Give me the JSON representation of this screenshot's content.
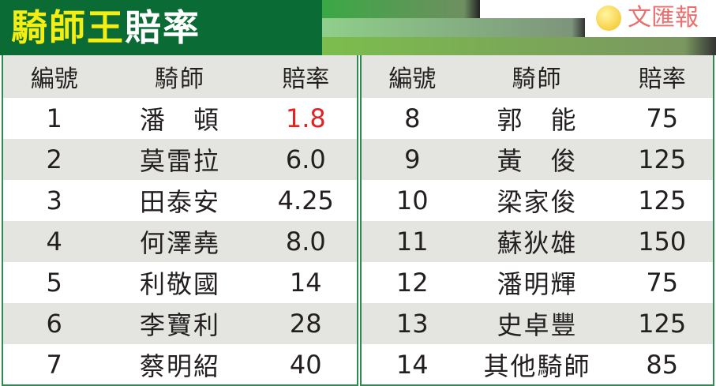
{
  "title": {
    "yellow": "騎師王",
    "white": "賠率"
  },
  "headers": [
    "編號",
    "騎師",
    "賠率"
  ],
  "left": [
    {
      "no": "1",
      "jockey": "潘　頓",
      "odds": "1.8",
      "highlight": true
    },
    {
      "no": "2",
      "jockey": "莫雷拉",
      "odds": "6.0"
    },
    {
      "no": "3",
      "jockey": "田泰安",
      "odds": "4.25"
    },
    {
      "no": "4",
      "jockey": "何澤堯",
      "odds": "8.0"
    },
    {
      "no": "5",
      "jockey": "利敬國",
      "odds": "14"
    },
    {
      "no": "6",
      "jockey": "李寶利",
      "odds": "28"
    },
    {
      "no": "7",
      "jockey": "蔡明紹",
      "odds": "40"
    }
  ],
  "right": [
    {
      "no": "8",
      "jockey": "郭　能",
      "odds": "75"
    },
    {
      "no": "9",
      "jockey": "黃　俊",
      "odds": "125"
    },
    {
      "no": "10",
      "jockey": "梁家俊",
      "odds": "125"
    },
    {
      "no": "11",
      "jockey": "蘇狄雄",
      "odds": "150"
    },
    {
      "no": "12",
      "jockey": "潘明輝",
      "odds": "75"
    },
    {
      "no": "13",
      "jockey": "史卓豐",
      "odds": "125"
    },
    {
      "no": "14",
      "jockey": "其他騎師",
      "odds": "85"
    }
  ],
  "watermark": "文匯報",
  "colors": {
    "title_bg": "#0a6b35",
    "title_yellow": "#f5ee12",
    "highlight": "#e8201f",
    "stripe": "#e4e5e1"
  }
}
